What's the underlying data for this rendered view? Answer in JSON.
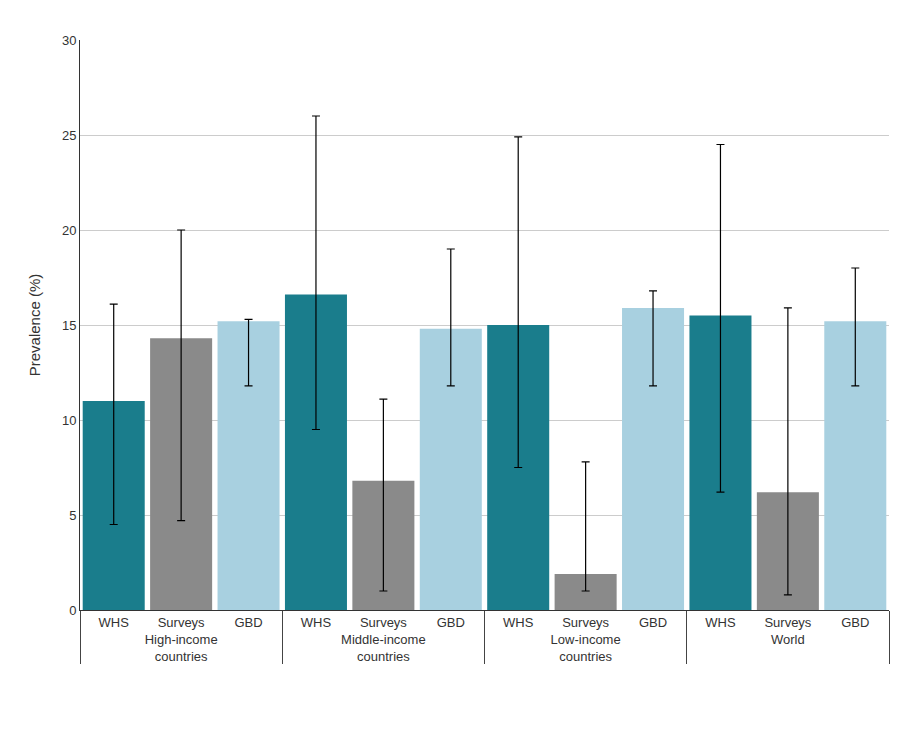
{
  "chart_data": {
    "type": "bar",
    "categories": [
      "High-income\ncountries",
      "Middle-income\ncountries",
      "Low-income\ncountries",
      "World"
    ],
    "series": [
      {
        "name": "WHS",
        "color": "#1a7d8c",
        "values": [
          11.0,
          16.6,
          15.0,
          15.5
        ],
        "err_low": [
          4.5,
          9.5,
          7.5,
          6.2
        ],
        "err_high": [
          16.1,
          26.0,
          24.9,
          24.5
        ]
      },
      {
        "name": "Surveys",
        "color": "#8a8a8a",
        "values": [
          14.3,
          6.8,
          1.9,
          6.2
        ],
        "err_low": [
          4.7,
          1.0,
          1.0,
          0.8
        ],
        "err_high": [
          20.0,
          11.1,
          7.8,
          15.9
        ]
      },
      {
        "name": "GBD",
        "color": "#a8d0e0",
        "values": [
          15.2,
          14.8,
          15.9,
          15.2
        ],
        "err_low": [
          11.8,
          11.8,
          11.8,
          11.8
        ],
        "err_high": [
          15.3,
          19.0,
          16.8,
          18.0
        ]
      }
    ],
    "ylabel": "Prevalence (%)",
    "ylim": [
      0,
      30
    ],
    "yticks": [
      0,
      5,
      10,
      15,
      20,
      25,
      30
    ],
    "grid": true
  }
}
